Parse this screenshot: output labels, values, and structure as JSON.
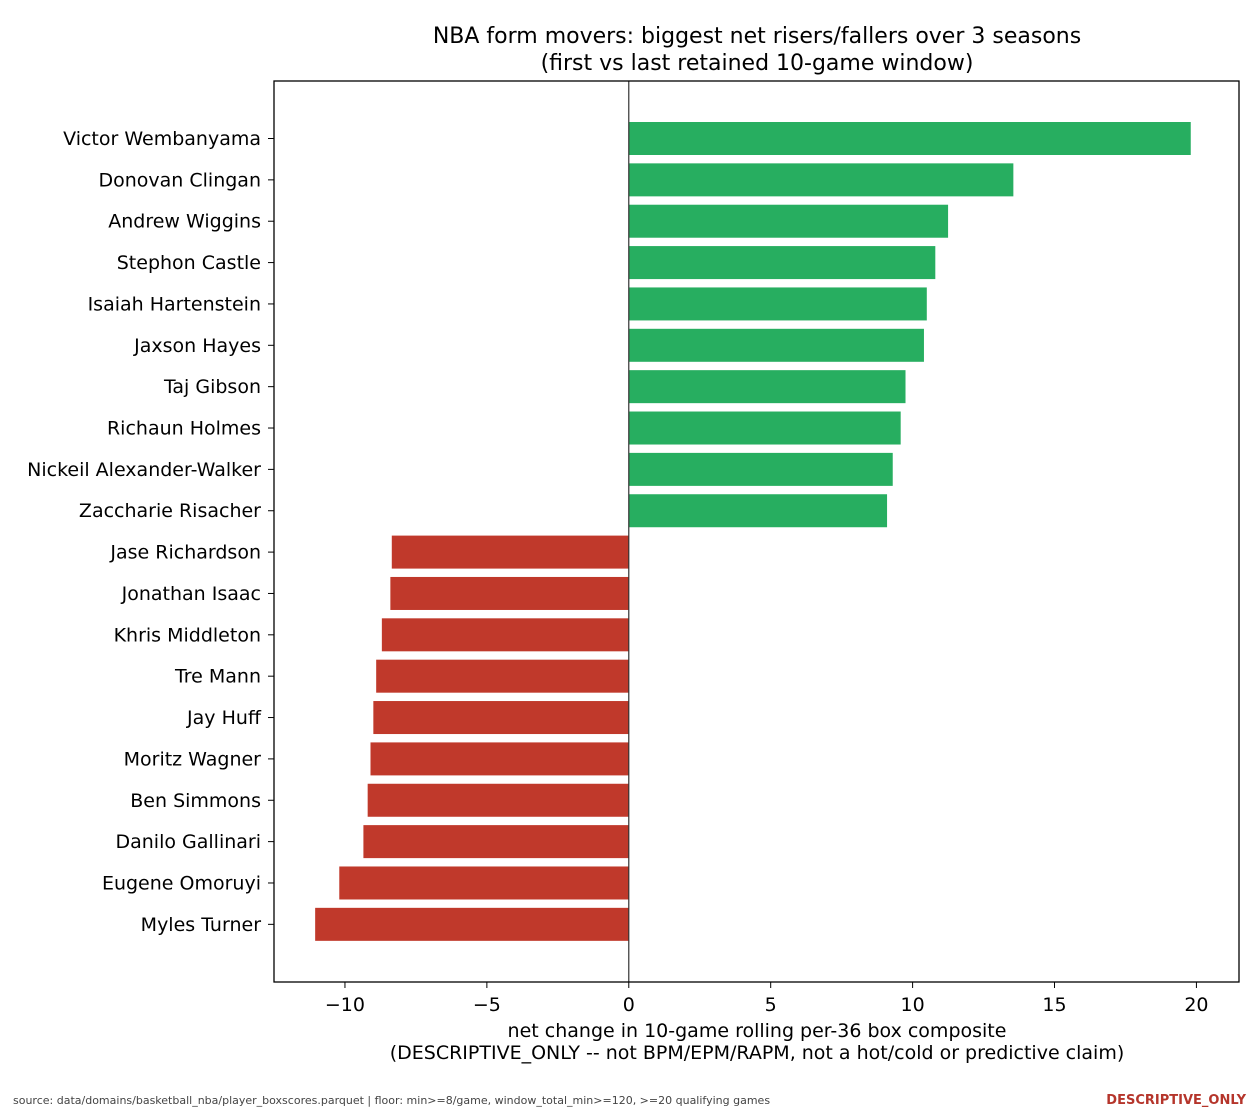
{
  "chart_data": {
    "type": "bar",
    "orientation": "horizontal",
    "title_line1": "NBA form movers: biggest net risers/fallers over 3 seasons",
    "title_line2": "(first vs last retained 10-game window)",
    "xlabel_line1": "net change in 10-game rolling per-36 box composite",
    "xlabel_line2": "(DESCRIPTIVE_ONLY -- not BPM/EPM/RAPM, not a hot/cold or predictive claim)",
    "ylabel": "",
    "xlim": [
      -12.5,
      21.5
    ],
    "xticks": [
      -10,
      -5,
      0,
      5,
      10,
      15,
      20
    ],
    "xtick_labels": [
      "−10",
      "−5",
      "0",
      "5",
      "10",
      "15",
      "20"
    ],
    "grid": false,
    "zero_line": true,
    "colors": {
      "positive": "#27ae60",
      "negative": "#c0392b"
    },
    "categories": [
      "Victor Wembanyama",
      "Donovan Clingan",
      "Andrew Wiggins",
      "Stephon Castle",
      "Isaiah Hartenstein",
      "Jaxson Hayes",
      "Taj Gibson",
      "Richaun Holmes",
      "Nickeil Alexander-Walker",
      "Zaccharie Risacher",
      "Jase Richardson",
      "Jonathan Isaac",
      "Khris Middleton",
      "Tre Mann",
      "Jay Huff",
      "Moritz Wagner",
      "Ben Simmons",
      "Danilo Gallinari",
      "Eugene Omoruyi",
      "Myles Turner"
    ],
    "values": [
      19.8,
      13.55,
      11.25,
      10.8,
      10.5,
      10.4,
      9.75,
      9.58,
      9.3,
      9.1,
      -8.35,
      -8.4,
      -8.7,
      -8.9,
      -9.0,
      -9.1,
      -9.2,
      -9.35,
      -10.2,
      -11.05
    ]
  },
  "footer": {
    "source": "source: data/domains/basketball_nba/player_boxscores.parquet  |  floor: min>=8/game, window_total_min>=120, >=20 qualifying games",
    "tag": "DESCRIPTIVE_ONLY"
  }
}
